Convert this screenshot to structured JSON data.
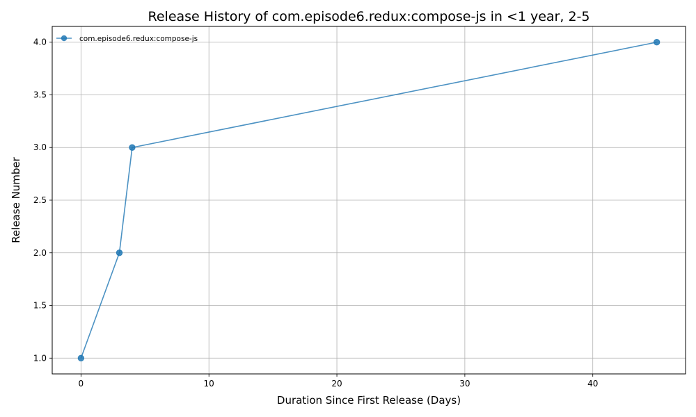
{
  "chart_data": {
    "type": "line",
    "title": "Release History of com.episode6.redux:compose-js in <1 year, 2-5",
    "xlabel": "Duration Since First Release (Days)",
    "ylabel": "Release Number",
    "xlim": [
      -2.25,
      47.25
    ],
    "ylim": [
      0.85,
      4.15
    ],
    "x_ticks": [
      0,
      10,
      20,
      30,
      40
    ],
    "y_ticks": [
      1.0,
      1.5,
      2.0,
      2.5,
      3.0,
      3.5,
      4.0
    ],
    "x_tick_labels": [
      "0",
      "10",
      "20",
      "30",
      "40"
    ],
    "y_tick_labels": [
      "1.0",
      "1.5",
      "2.0",
      "2.5",
      "3.0",
      "3.5",
      "4.0"
    ],
    "grid": true,
    "legend_position": "top-left",
    "series": [
      {
        "name": "com.episode6.redux:compose-js",
        "color": "#1f77b4",
        "marker": "circle",
        "x": [
          0,
          3,
          4,
          45
        ],
        "y": [
          1,
          2,
          3,
          4
        ]
      }
    ]
  }
}
